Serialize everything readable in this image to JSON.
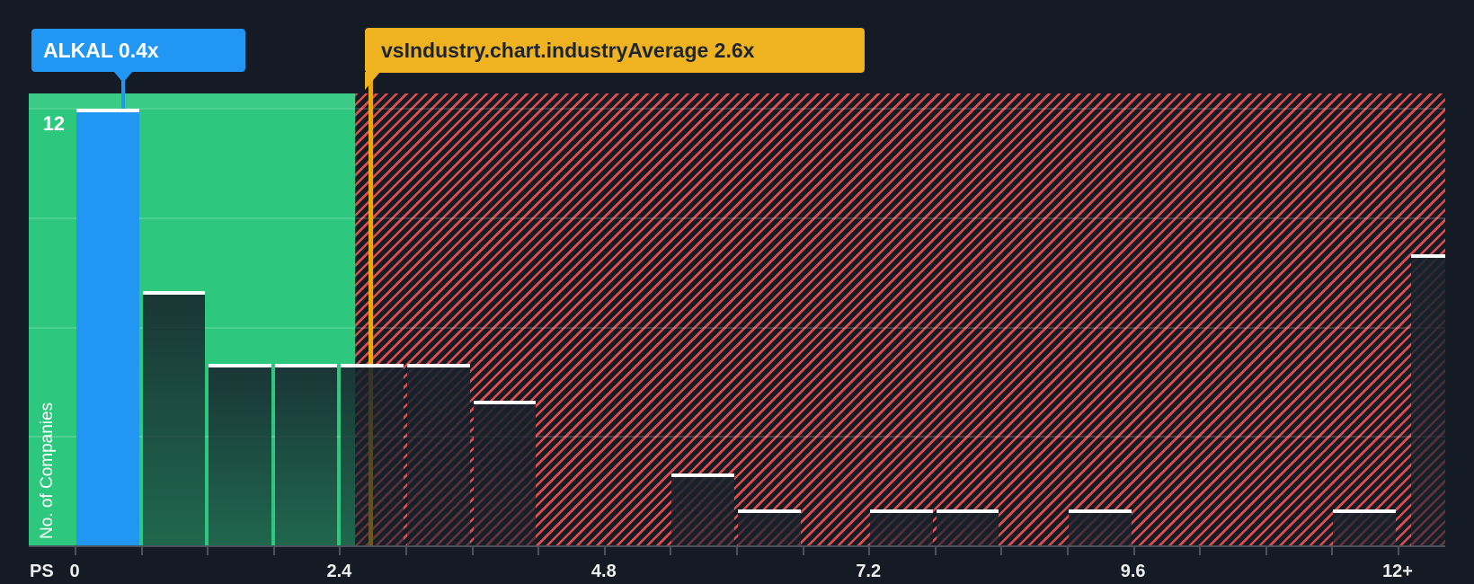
{
  "page": {
    "background": "#151b24"
  },
  "tooltips": {
    "company": {
      "label": "ALKAL 0.4x",
      "color": "#2196f3",
      "text_color": "#ffffff"
    },
    "industry": {
      "label": "vsIndustry.chart.industryAverage 2.6x",
      "color": "#efb321",
      "text_color": "#1d2530"
    }
  },
  "axis": {
    "prefix_label": "PS",
    "y_top_tick_label": "12",
    "ylabel": "No. of Companies",
    "x_ticks": [
      {
        "label": "0",
        "value": 0
      },
      {
        "label": "2.4",
        "value": 2.4
      },
      {
        "label": "4.8",
        "value": 4.8
      },
      {
        "label": "7.2",
        "value": 7.2
      },
      {
        "label": "9.6",
        "value": 9.6
      },
      {
        "label": "12+",
        "value": 12
      }
    ]
  },
  "chart_data": {
    "type": "bar",
    "kind": "histogram",
    "title": "",
    "xlabel": "PS",
    "ylabel": "No. of Companies",
    "bin_width": 0.6,
    "x_range": [
      0,
      12
    ],
    "y_max": 12,
    "grid": true,
    "gridline_values": [
      12,
      9,
      6,
      3
    ],
    "minor_tick_step": 0.6,
    "bins": [
      {
        "x0": 0.0,
        "x1": 0.6,
        "count": 12,
        "highlight": true
      },
      {
        "x0": 0.6,
        "x1": 1.2,
        "count": 7
      },
      {
        "x0": 1.2,
        "x1": 1.8,
        "count": 5
      },
      {
        "x0": 1.8,
        "x1": 2.4,
        "count": 5
      },
      {
        "x0": 2.4,
        "x1": 3.0,
        "count": 5
      },
      {
        "x0": 3.0,
        "x1": 3.6,
        "count": 5
      },
      {
        "x0": 3.6,
        "x1": 4.2,
        "count": 4
      },
      {
        "x0": 4.2,
        "x1": 4.8,
        "count": 0
      },
      {
        "x0": 4.8,
        "x1": 5.4,
        "count": 0
      },
      {
        "x0": 5.4,
        "x1": 6.0,
        "count": 2
      },
      {
        "x0": 6.0,
        "x1": 6.6,
        "count": 1
      },
      {
        "x0": 6.6,
        "x1": 7.2,
        "count": 0
      },
      {
        "x0": 7.2,
        "x1": 7.8,
        "count": 1
      },
      {
        "x0": 7.8,
        "x1": 8.4,
        "count": 1
      },
      {
        "x0": 8.4,
        "x1": 9.0,
        "count": 0
      },
      {
        "x0": 9.0,
        "x1": 9.6,
        "count": 1
      },
      {
        "x0": 9.6,
        "x1": 10.2,
        "count": 0
      },
      {
        "x0": 10.2,
        "x1": 10.8,
        "count": 0
      },
      {
        "x0": 10.8,
        "x1": 11.4,
        "count": 0
      },
      {
        "x0": 11.4,
        "x1": 12.0,
        "count": 1
      },
      {
        "x0": 12.0,
        "x1": null,
        "count": 8,
        "overflow": true,
        "label": "12+"
      }
    ],
    "company_marker": {
      "name": "ALKAL",
      "value": 0.4,
      "value_label": "0.4x",
      "bin_count": 12
    },
    "industry_marker": {
      "name": "vsIndustry.chart.industryAverage",
      "value": 2.6,
      "value_label": "2.6x"
    },
    "legend": "none",
    "colors": {
      "highlight_bar": "#2196f3",
      "below_average_zone": "#2dc87d",
      "above_average_stripe": "#ec4e4e",
      "industry_line": "#e8a713",
      "bar_fill": "rgba(22,34,44,0.8)",
      "bar_cap": "#ffffff",
      "background": "#151b24"
    }
  }
}
